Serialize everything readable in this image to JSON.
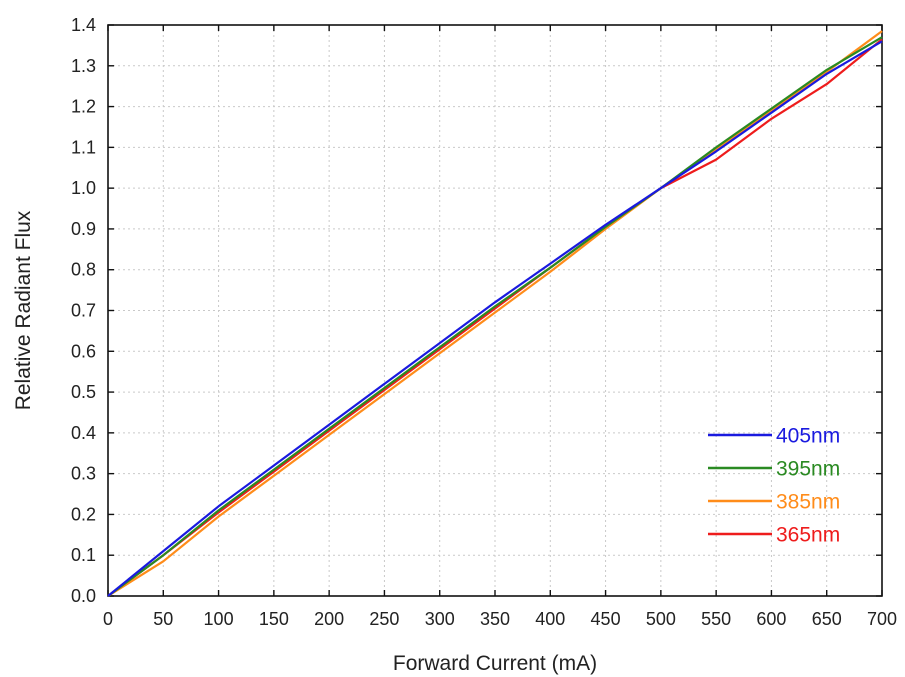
{
  "chart_data": {
    "type": "line",
    "title": "",
    "xlabel": "Forward Current (mA)",
    "ylabel": "Relative Radiant Flux",
    "xlim": [
      0,
      700
    ],
    "ylim": [
      0,
      1.4
    ],
    "x_ticks": [
      "0",
      "50",
      "100",
      "150",
      "200",
      "250",
      "300",
      "350",
      "400",
      "450",
      "500",
      "550",
      "600",
      "650",
      "700"
    ],
    "y_ticks": [
      "0.0",
      "0.1",
      "0.2",
      "0.3",
      "0.4",
      "0.5",
      "0.6",
      "0.7",
      "0.8",
      "0.9",
      "1.0",
      "1.1",
      "1.2",
      "1.3",
      "1.4"
    ],
    "grid": true,
    "legend_position": "bottom-right",
    "x": [
      0,
      50,
      100,
      150,
      200,
      250,
      300,
      350,
      400,
      450,
      500,
      550,
      600,
      650,
      700
    ],
    "series": [
      {
        "name": "405nm",
        "color": "#1a1adf",
        "values": [
          0,
          0.11,
          0.22,
          0.32,
          0.42,
          0.52,
          0.62,
          0.72,
          0.815,
          0.91,
          1.0,
          1.09,
          1.185,
          1.28,
          1.36
        ]
      },
      {
        "name": "395nm",
        "color": "#2a8a22",
        "values": [
          0,
          0.1,
          0.21,
          0.31,
          0.41,
          0.51,
          0.61,
          0.71,
          0.805,
          0.905,
          1.0,
          1.1,
          1.195,
          1.29,
          1.37
        ]
      },
      {
        "name": "385nm",
        "color": "#ff8c1a",
        "values": [
          0,
          0.085,
          0.195,
          0.295,
          0.395,
          0.495,
          0.595,
          0.695,
          0.795,
          0.9,
          1.0,
          1.095,
          1.19,
          1.285,
          1.385
        ]
      },
      {
        "name": "365nm",
        "color": "#ee1c1c",
        "values": [
          0,
          0.1,
          0.205,
          0.305,
          0.405,
          0.505,
          0.605,
          0.705,
          0.805,
          0.905,
          1.0,
          1.07,
          1.17,
          1.255,
          1.365
        ]
      }
    ]
  }
}
